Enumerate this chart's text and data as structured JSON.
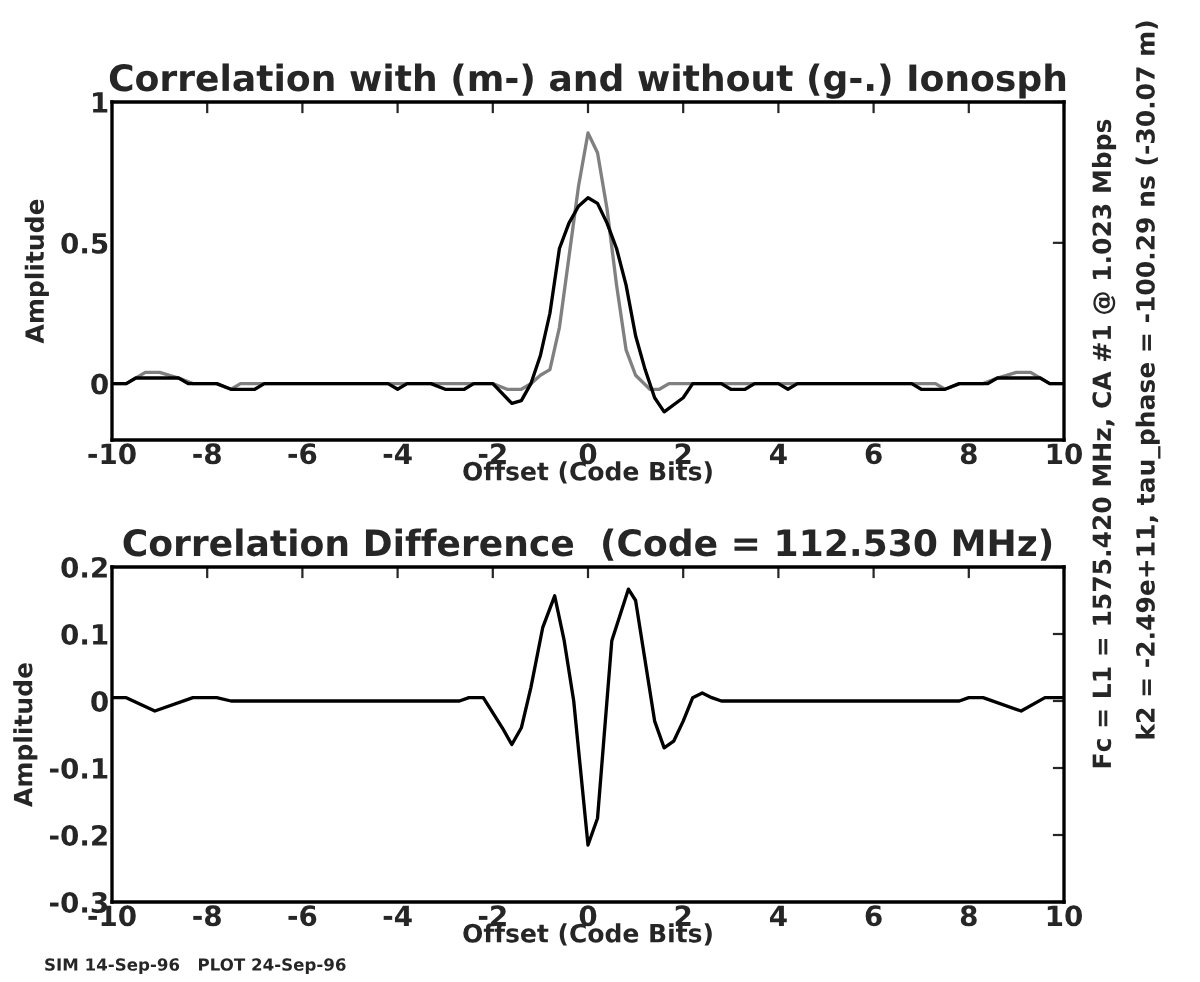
{
  "chart_data": [
    {
      "type": "line",
      "title": "Correlation with (m-) and without (g-.) Ionosph",
      "xlabel": "Offset (Code Bits)",
      "ylabel": "Amplitude",
      "xlim": [
        -10,
        10
      ],
      "xticks": [
        -10,
        -8,
        -6,
        -4,
        -2,
        0,
        2,
        4,
        6,
        8,
        10
      ],
      "ylim": [
        -0.2,
        1
      ],
      "yticks": [
        0,
        0.5,
        1
      ],
      "annotations": [
        "Fc = L1 = 1575.420 MHz, CA #1 @ 1.023 Mbps",
        "k2 = -2.49e+11, tau_phase = -100.29 ns (-30.07 m)"
      ],
      "series": [
        {
          "color": "#808080",
          "x": [
            -10,
            -9.7,
            -9.3,
            -9,
            -8.6,
            -8.3,
            -7.8,
            -7.5,
            -7.3,
            -2.3,
            -2,
            -1.7,
            -1.4,
            -1.2,
            -1,
            -0.8,
            -0.6,
            -0.4,
            -0.2,
            0,
            0.2,
            0.4,
            0.6,
            0.8,
            1,
            1.3,
            1.5,
            1.7,
            2,
            7.3,
            7.5,
            7.8,
            8.3,
            8.6,
            9,
            9.3,
            9.7,
            10
          ],
          "values": [
            0,
            0,
            0.04,
            0.04,
            0.02,
            0,
            0,
            -0.02,
            0,
            0,
            0,
            -0.02,
            -0.02,
            0,
            0.03,
            0.05,
            0.2,
            0.45,
            0.7,
            0.89,
            0.82,
            0.62,
            0.35,
            0.12,
            0.03,
            -0.02,
            -0.02,
            0,
            0,
            0,
            -0.02,
            0,
            0,
            0.02,
            0.04,
            0.04,
            0,
            0
          ]
        },
        {
          "color": "#000000",
          "x": [
            -10,
            -9.7,
            -9.5,
            -8.6,
            -8.4,
            -7.8,
            -7.5,
            -7,
            -6.8,
            -4.2,
            -4,
            -3.8,
            -3.3,
            -3,
            -2.6,
            -2.4,
            -2,
            -1.6,
            -1.4,
            -1.2,
            -1,
            -0.8,
            -0.6,
            -0.4,
            -0.2,
            0,
            0.2,
            0.4,
            0.6,
            0.8,
            1,
            1.2,
            1.4,
            1.6,
            2,
            2.2,
            2.6,
            2.8,
            3,
            3.3,
            3.5,
            4,
            4.2,
            4.4,
            6.8,
            7,
            7.5,
            7.8,
            8.4,
            8.6,
            9.5,
            9.7,
            10
          ],
          "values": [
            0,
            0,
            0.02,
            0.02,
            0,
            0,
            -0.02,
            -0.02,
            0,
            0,
            -0.02,
            0,
            0,
            -0.02,
            -0.02,
            0,
            0,
            -0.07,
            -0.06,
            0,
            0.1,
            0.25,
            0.48,
            0.57,
            0.63,
            0.66,
            0.64,
            0.57,
            0.48,
            0.35,
            0.17,
            0.05,
            -0.05,
            -0.1,
            -0.05,
            0,
            0,
            0,
            -0.02,
            -0.02,
            0,
            0,
            -0.02,
            0,
            0,
            -0.02,
            -0.02,
            0,
            0,
            0.02,
            0.02,
            0,
            0
          ]
        }
      ]
    },
    {
      "type": "line",
      "title": "Correlation Difference  (Code = 112.530 MHz)",
      "xlabel": "Offset (Code Bits)",
      "ylabel": "Amplitude",
      "xlim": [
        -10,
        10
      ],
      "xticks": [
        -10,
        -8,
        -6,
        -4,
        -2,
        0,
        2,
        4,
        6,
        8,
        10
      ],
      "ylim": [
        -0.3,
        0.2
      ],
      "yticks": [
        -0.3,
        -0.2,
        -0.1,
        0,
        0.1,
        0.2
      ],
      "annotations": [
        "SIM 14-Sep-96   PLOT 24-Sep-96"
      ],
      "series": [
        {
          "color": "#000000",
          "x": [
            -10,
            -9.7,
            -9.1,
            -8.3,
            -7.8,
            -7.5,
            -2.7,
            -2.5,
            -2.2,
            -1.8,
            -1.6,
            -1.4,
            -1.2,
            -0.95,
            -0.7,
            -0.5,
            -0.3,
            0,
            0.2,
            0.5,
            0.85,
            1,
            1.4,
            1.6,
            1.8,
            2,
            2.2,
            2.4,
            2.6,
            2.8,
            7.8,
            8,
            8.3,
            9.1,
            9.6,
            10
          ],
          "values": [
            0.005,
            0.005,
            -0.015,
            0.005,
            0.005,
            0,
            0,
            0.005,
            0.005,
            -0.04,
            -0.065,
            -0.04,
            0.02,
            0.11,
            0.157,
            0.09,
            0,
            -0.215,
            -0.175,
            0.09,
            0.167,
            0.15,
            -0.03,
            -0.07,
            -0.06,
            -0.03,
            0.005,
            0.012,
            0.005,
            0,
            0,
            0.005,
            0.005,
            -0.015,
            0.005,
            0.005
          ]
        }
      ]
    }
  ]
}
